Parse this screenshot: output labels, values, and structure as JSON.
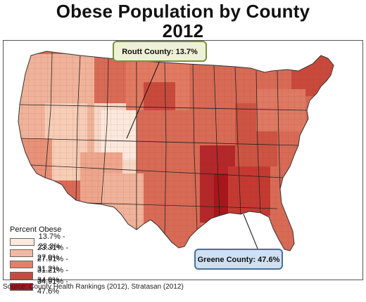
{
  "title": {
    "line1": "Obese Population by County",
    "line2": "2012"
  },
  "legend": {
    "title": "Percent Obese",
    "items": [
      {
        "label": "13.7% - 23.3%",
        "color": "#fce8dc"
      },
      {
        "label": "23.31% - 27.9%",
        "color": "#f3b89f"
      },
      {
        "label": "27.91% - 31.2%",
        "color": "#e4806a"
      },
      {
        "label": "31.21% - 34.9%",
        "color": "#c94a3c"
      },
      {
        "label": "34.91% - 47.6%",
        "color": "#a8161b"
      }
    ]
  },
  "callouts": {
    "top": "Routt County: 13.7%",
    "bottom": "Greene County: 47.6%"
  },
  "source": "Source: County Health Rankings (2012), Stratasan (2012)"
}
